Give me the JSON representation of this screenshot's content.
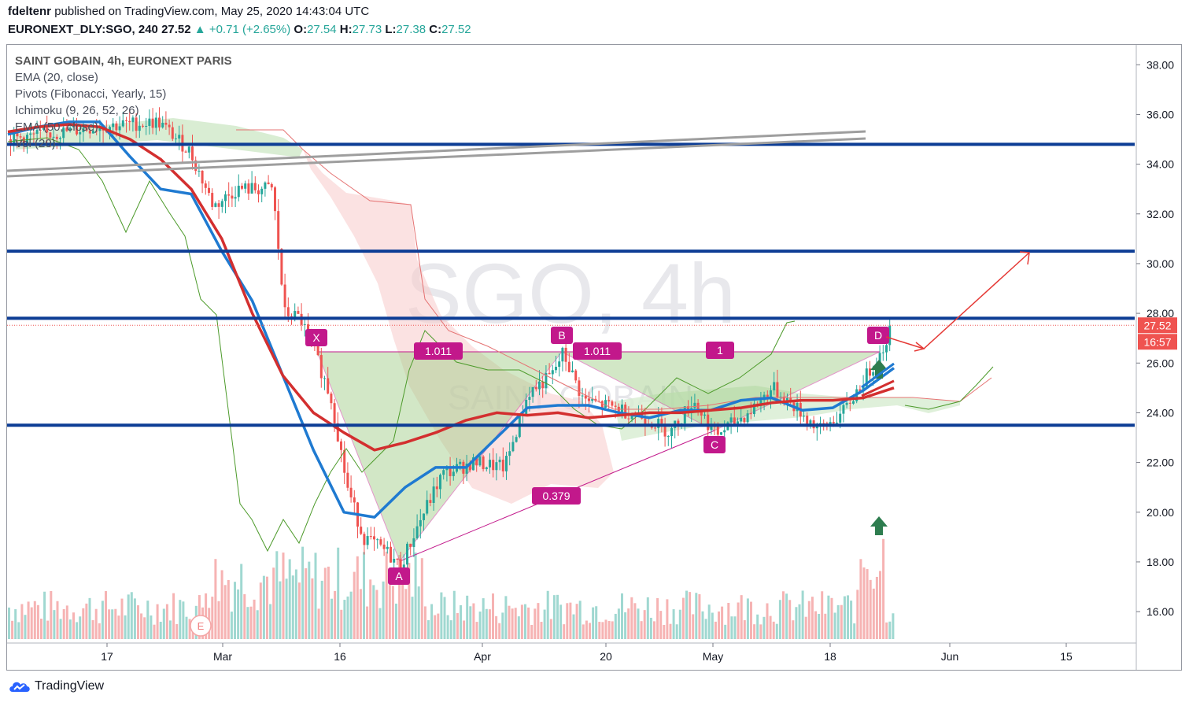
{
  "header": {
    "author": "fdeltenr",
    "published_text": "published on TradingView.com, May 25, 2020 14:43:04 UTC",
    "symbol": "EURONEXT_DLY:SGO, 240",
    "last": "27.52",
    "change_arrow": "▲",
    "change": "+0.71 (+2.65%)",
    "open_label": "O:",
    "open": "27.54",
    "high_label": "H:",
    "high": "27.73",
    "low_label": "L:",
    "low": "27.38",
    "close_label": "C:",
    "close": "27.52"
  },
  "legend": {
    "title": "SAINT GOBAIN, 4h, EURONEXT PARIS",
    "items": [
      "EMA (20, close)",
      "Pivots (Fibonacci, Yearly, 15)",
      "Ichimoku (9, 26, 52, 26)",
      "EMA (50, close)",
      "Vol (20)"
    ]
  },
  "watermark": {
    "main": "SGO, 4h",
    "sub": "SAINT GOBAIN"
  },
  "footer": {
    "brand": "TradingView"
  },
  "colors": {
    "up": "#26a69a",
    "down": "#ef5350",
    "ema20": "#1f7ad1",
    "ema50": "#d32f2f",
    "level": "#0d3d95",
    "pattern": "#c2188b",
    "price_tag": "#ef5350"
  },
  "chart_data": {
    "type": "candlestick",
    "y_axis": {
      "ylim": [
        14.8,
        38.8
      ],
      "ticks": [
        16,
        18,
        20,
        22,
        24,
        26,
        28,
        30,
        32,
        34,
        36,
        38
      ],
      "tick_labels": [
        "16.00",
        "18.00",
        "20.00",
        "22.00",
        "24.00",
        "26.00",
        "28.00",
        "30.00",
        "32.00",
        "34.00",
        "36.00",
        "38.00"
      ],
      "side": "right"
    },
    "x_axis": {
      "labels": [
        "17",
        "Mar",
        "16",
        "Apr",
        "20",
        "May",
        "18",
        "Jun",
        "15"
      ]
    },
    "price_tags": {
      "last": "27.52",
      "countdown": "16:57"
    },
    "horizontal_levels": [
      34.8,
      30.5,
      27.8,
      23.5
    ],
    "harmonic_pattern": {
      "points": [
        {
          "label": "X",
          "price": 26.3
        },
        {
          "label": "A",
          "price": 17.8
        },
        {
          "label": "B",
          "price": 26.4
        },
        {
          "label": "C",
          "price": 23.0
        },
        {
          "label": "D",
          "price": 26.4
        }
      ],
      "ratios": [
        "1.011",
        "1.011",
        "1",
        "0.379"
      ]
    },
    "series": [
      {
        "name": "EMA (20, close)",
        "values": [
          35.2,
          35.5,
          35.7,
          35.7,
          34.3,
          33.0,
          32.8,
          30.5,
          28.5,
          25.5,
          22.5,
          20.0,
          19.8,
          21.0,
          21.8,
          21.8,
          23.0,
          24.2,
          24.3,
          24.3,
          24.0,
          23.8,
          24.1,
          24.1,
          24.5,
          24.6,
          24.1,
          24.2,
          24.9,
          25.8
        ]
      },
      {
        "name": "EMA (50, close)",
        "values": [
          35.3,
          35.5,
          35.6,
          35.5,
          35.0,
          34.2,
          33.0,
          31.0,
          28.0,
          25.5,
          24.0,
          23.2,
          22.5,
          22.8,
          23.2,
          23.7,
          24.0,
          23.9,
          24.0,
          23.8,
          23.9,
          24.0,
          24.0,
          24.1,
          24.2,
          24.4,
          24.5,
          24.5,
          24.6,
          25.0
        ]
      }
    ],
    "annotations": [
      "up-arrow near 24.0",
      "up-arrow near 19.4",
      "projected path towards 30.5"
    ]
  }
}
